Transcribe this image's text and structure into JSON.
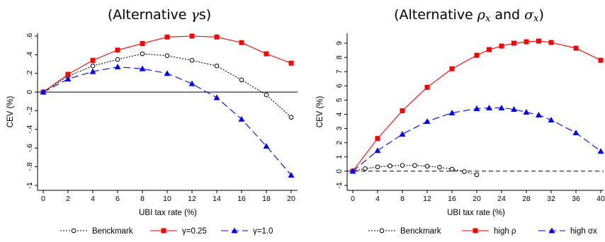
{
  "chart_data": [
    {
      "type": "line",
      "title": "(Alternative γs)",
      "xlabel": "UBI tax rate (%)",
      "ylabel": "CEV (%)",
      "xlim": [
        0,
        20
      ],
      "ylim": [
        -1,
        0.6
      ],
      "xticks": [
        0,
        2,
        4,
        6,
        8,
        10,
        12,
        14,
        16,
        18,
        20
      ],
      "xtick_labels": [
        "0",
        "2",
        "4",
        "6",
        "8",
        "10",
        "12",
        "14",
        "16",
        "18",
        "20"
      ],
      "yticks": [
        -1,
        -0.8,
        -0.6,
        -0.4,
        -0.2,
        0,
        0.2,
        0.4,
        0.6
      ],
      "ytick_labels": [
        "-1",
        "-.8",
        "-.6",
        "-.4",
        "-.2",
        "0",
        ".2",
        ".4",
        ".6"
      ],
      "zero_line": true,
      "grid": false,
      "legend_position": "bottom",
      "x": [
        0,
        2,
        4,
        6,
        8,
        10,
        12,
        14,
        16,
        18,
        20
      ],
      "series": [
        {
          "name": "Benckmark",
          "color": "#000000",
          "dash": "dotted",
          "marker": "circle-open",
          "values": [
            0,
            0.17,
            0.28,
            0.35,
            0.41,
            0.39,
            0.34,
            0.28,
            0.13,
            -0.03,
            -0.27
          ]
        },
        {
          "name": "γ=0.25",
          "color": "#ff0000",
          "dash": "solid",
          "marker": "square",
          "values": [
            0,
            0.19,
            0.34,
            0.45,
            0.52,
            0.59,
            0.6,
            0.59,
            0.53,
            0.41,
            0.31
          ]
        },
        {
          "name": "γ=1.0",
          "color": "#0000ff",
          "dash": "dashed",
          "marker": "triangle",
          "values": [
            0,
            0.14,
            0.22,
            0.27,
            0.25,
            0.2,
            0.09,
            -0.06,
            -0.29,
            -0.58,
            -0.89
          ]
        }
      ]
    },
    {
      "type": "line",
      "title": "(Alternative ρx and σx)",
      "xlabel": "UBI tax rate (%)",
      "ylabel": "CEV (%)",
      "xlim": [
        0,
        40
      ],
      "ylim": [
        -1,
        9.5
      ],
      "xticks": [
        0,
        4,
        8,
        12,
        16,
        20,
        24,
        28,
        32,
        36,
        40
      ],
      "xtick_labels": [
        "0",
        "4",
        "8",
        "12",
        "16",
        "20",
        "24",
        "28",
        "32",
        "36",
        "40"
      ],
      "yticks": [
        -1,
        0,
        1,
        2,
        3,
        4,
        5,
        6,
        7,
        8,
        9
      ],
      "ytick_labels": [
        "-1",
        "0",
        "1",
        "2",
        "3",
        "4",
        "5",
        "6",
        "7",
        "8",
        "9"
      ],
      "zero_line": true,
      "grid": false,
      "legend_position": "bottom",
      "series": [
        {
          "name": "Benckmark",
          "color": "#000000",
          "dash": "dotted",
          "marker": "circle-open",
          "x": [
            0,
            2,
            4,
            6,
            8,
            10,
            12,
            14,
            16,
            18,
            20
          ],
          "values": [
            0,
            0.18,
            0.3,
            0.37,
            0.41,
            0.4,
            0.35,
            0.28,
            0.14,
            -0.03,
            -0.25
          ]
        },
        {
          "name": "high ρ",
          "color": "#ff0000",
          "dash": "solid",
          "marker": "square",
          "x": [
            0,
            4,
            8,
            12,
            16,
            20,
            22,
            24,
            26,
            28,
            30,
            32,
            36,
            40
          ],
          "values": [
            0,
            2.3,
            4.25,
            5.9,
            7.2,
            8.15,
            8.55,
            8.8,
            9.0,
            9.1,
            9.15,
            9.05,
            8.65,
            7.8
          ]
        },
        {
          "name": "high σx",
          "color": "#0000ff",
          "dash": "dashed",
          "marker": "triangle",
          "x": [
            0,
            4,
            8,
            12,
            16,
            20,
            22,
            24,
            26,
            28,
            30,
            32,
            36,
            40
          ],
          "values": [
            0,
            1.45,
            2.6,
            3.5,
            4.1,
            4.4,
            4.45,
            4.45,
            4.35,
            4.15,
            3.95,
            3.6,
            2.7,
            1.4
          ]
        }
      ]
    }
  ]
}
